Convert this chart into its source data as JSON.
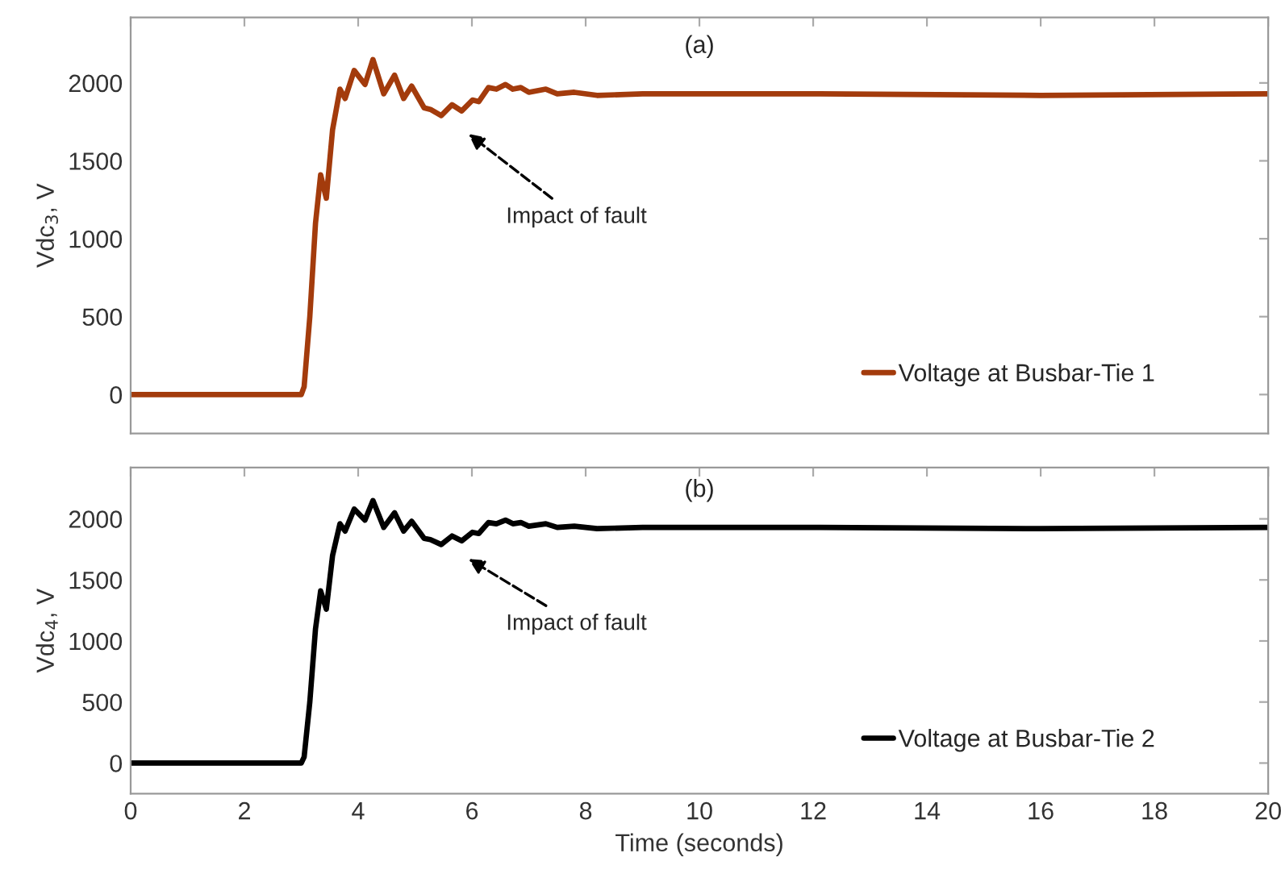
{
  "chart_data": [
    {
      "type": "line",
      "title": "(a)",
      "ylabel": "Vdc$_{3}$, V",
      "xlim": [
        0,
        20
      ],
      "xticks": [
        0,
        2,
        4,
        6,
        8,
        10,
        12,
        14,
        16,
        18,
        20
      ],
      "ylim": [
        -250,
        2420
      ],
      "yticks": [
        0,
        500,
        1000,
        1500,
        2000
      ],
      "tick_labels": "y",
      "legend": "bottom right",
      "grid": false,
      "marker": "none",
      "line_style": "solid",
      "annotations": [
        "Impact of fault"
      ],
      "series": [
        {
          "name": "Voltage at Busbar-Tie 1",
          "color": "#a33b0c",
          "x": [
            0,
            3.0,
            3.05,
            3.15,
            3.25,
            3.34,
            3.44,
            3.55,
            3.68,
            3.77,
            3.93,
            4.12,
            4.26,
            4.45,
            4.64,
            4.8,
            4.94,
            5.16,
            5.27,
            5.46,
            5.65,
            5.82,
            6.01,
            6.12,
            6.29,
            6.43,
            6.59,
            6.72,
            6.86,
            7.0,
            7.3,
            7.5,
            7.8,
            8.2,
            9,
            12,
            16,
            20
          ],
          "values": [
            0,
            0,
            50,
            500,
            1100,
            1410,
            1260,
            1700,
            1960,
            1900,
            2080,
            1990,
            2150,
            1930,
            2050,
            1900,
            1980,
            1840,
            1830,
            1790,
            1860,
            1820,
            1890,
            1880,
            1970,
            1960,
            1990,
            1960,
            1970,
            1940,
            1960,
            1930,
            1940,
            1920,
            1930,
            1930,
            1920,
            1930
          ]
        }
      ]
    },
    {
      "type": "line",
      "title": "(b)",
      "ylabel": "Vdc$_{4}$, V",
      "xlabel": "Time (seconds)",
      "xlim": [
        0,
        20
      ],
      "xticks": [
        0,
        2,
        4,
        6,
        8,
        10,
        12,
        14,
        16,
        18,
        20
      ],
      "ylim": [
        -250,
        2420
      ],
      "yticks": [
        0,
        500,
        1000,
        1500,
        2000
      ],
      "legend": "bottom right",
      "grid": false,
      "marker": "none",
      "line_style": "solid",
      "annotations": [
        "Impact of fault"
      ],
      "series": [
        {
          "name": "Voltage at Busbar-Tie 2",
          "color": "#000000",
          "x": [
            0,
            3.0,
            3.05,
            3.15,
            3.25,
            3.34,
            3.44,
            3.55,
            3.68,
            3.77,
            3.93,
            4.12,
            4.26,
            4.45,
            4.64,
            4.8,
            4.94,
            5.16,
            5.27,
            5.46,
            5.65,
            5.82,
            6.01,
            6.12,
            6.29,
            6.43,
            6.59,
            6.72,
            6.86,
            7.0,
            7.3,
            7.5,
            7.8,
            8.2,
            9,
            12,
            16,
            20
          ],
          "values": [
            0,
            0,
            50,
            500,
            1100,
            1410,
            1260,
            1700,
            1960,
            1900,
            2080,
            1990,
            2150,
            1930,
            2050,
            1900,
            1980,
            1840,
            1830,
            1790,
            1860,
            1820,
            1890,
            1880,
            1970,
            1960,
            1990,
            1960,
            1970,
            1940,
            1960,
            1930,
            1940,
            1920,
            1930,
            1930,
            1920,
            1930
          ]
        }
      ]
    }
  ]
}
